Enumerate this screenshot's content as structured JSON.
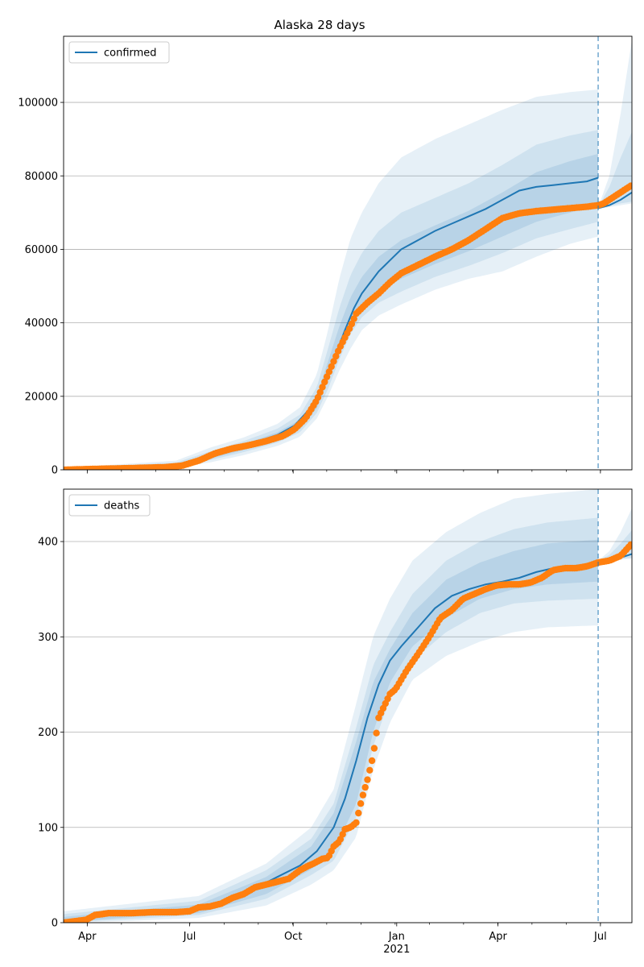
{
  "title": "Alaska 28 days",
  "chart_data": [
    {
      "type": "line",
      "xlabel": "",
      "ylabel": "",
      "x_range_days": [
        0,
        505
      ],
      "ylim": [
        0,
        118000
      ],
      "yticks": [
        0,
        20000,
        40000,
        60000,
        80000,
        100000
      ],
      "grid": "horizontal",
      "legend_position": "top-left",
      "legend": [
        "confirmed"
      ],
      "forecast_start_day": 475,
      "x_ticks": [
        {
          "day": 21,
          "label": "Apr"
        },
        {
          "day": 112,
          "label": "Jul"
        },
        {
          "day": 204,
          "label": "Oct"
        },
        {
          "day": 296,
          "label": "Jan"
        },
        {
          "day": 386,
          "label": "Apr"
        },
        {
          "day": 477,
          "label": "Jul"
        }
      ],
      "year_label": {
        "day": 296,
        "label": "2021"
      },
      "series": [
        {
          "name": "confirmed",
          "role": "model",
          "x": [
            0,
            30,
            60,
            90,
            110,
            130,
            150,
            170,
            190,
            205,
            220,
            235,
            250,
            258,
            265,
            270,
            275,
            280,
            285,
            290,
            300,
            315,
            330,
            345,
            360,
            375,
            390,
            405,
            420,
            435,
            450,
            465,
            475
          ],
          "values": [
            0,
            200,
            400,
            600,
            1200,
            3500,
            5800,
            7500,
            9500,
            12000,
            17000,
            26000,
            38000,
            44000,
            48000,
            50000,
            52000,
            54000,
            55500,
            57000,
            60000,
            62500,
            65000,
            67000,
            69000,
            71000,
            73500,
            76000,
            77000,
            77500,
            78000,
            78500,
            79500
          ]
        },
        {
          "name": "forecast",
          "role": "model",
          "x": [
            475,
            485,
            495,
            505
          ],
          "values": [
            71200,
            72000,
            73500,
            75500
          ]
        },
        {
          "name": "observed",
          "role": "observed",
          "x": [
            0,
            30,
            60,
            90,
            105,
            120,
            135,
            150,
            165,
            180,
            195,
            205,
            215,
            225,
            235,
            245,
            255,
            260,
            270,
            280,
            290,
            300,
            310,
            320,
            330,
            345,
            360,
            375,
            390,
            405,
            420,
            435,
            450,
            465,
            475,
            480,
            490,
            500,
            505
          ],
          "values": [
            0,
            250,
            450,
            700,
            1100,
            2500,
            4500,
            5800,
            6700,
            7800,
            9200,
            11000,
            14000,
            19000,
            26000,
            33000,
            39000,
            42500,
            45500,
            48000,
            51000,
            53500,
            55000,
            56500,
            58000,
            60000,
            62500,
            65500,
            68500,
            69800,
            70400,
            70800,
            71200,
            71600,
            72000,
            72500,
            74500,
            76500,
            77500
          ]
        }
      ],
      "bands": [
        {
          "level": "outer",
          "x": [
            0,
            100,
            130,
            160,
            190,
            210,
            225,
            235,
            245,
            255,
            265,
            280,
            300,
            330,
            360,
            390,
            420,
            450,
            475
          ],
          "lower": [
            0,
            600,
            2000,
            4000,
            6500,
            9000,
            14000,
            20000,
            27000,
            33000,
            38000,
            42000,
            45000,
            49000,
            52000,
            54000,
            58000,
            61500,
            63500
          ],
          "upper": [
            500,
            2500,
            6000,
            8800,
            12500,
            17000,
            26000,
            38000,
            52000,
            63000,
            70000,
            78000,
            85000,
            90000,
            94000,
            98000,
            101500,
            102800,
            103500
          ]
        },
        {
          "level": "middle",
          "x": [
            0,
            100,
            130,
            160,
            190,
            210,
            225,
            235,
            245,
            255,
            265,
            280,
            300,
            330,
            360,
            390,
            420,
            450,
            475
          ],
          "lower": [
            0,
            800,
            2600,
            4800,
            7400,
            10200,
            15500,
            22000,
            30000,
            37000,
            41500,
            45500,
            48500,
            52500,
            55500,
            59000,
            63000,
            65500,
            67500
          ],
          "upper": [
            350,
            2000,
            5000,
            7800,
            11200,
            15000,
            22500,
            33000,
            44000,
            53000,
            59000,
            65000,
            70000,
            74000,
            78000,
            83000,
            88500,
            91000,
            92500
          ]
        },
        {
          "level": "inner",
          "x": [
            0,
            100,
            130,
            160,
            190,
            210,
            225,
            235,
            245,
            255,
            265,
            280,
            300,
            330,
            360,
            390,
            420,
            450,
            475
          ],
          "lower": [
            0,
            1000,
            3000,
            5400,
            8200,
            11000,
            16800,
            24500,
            33000,
            40000,
            44500,
            48500,
            52000,
            56000,
            59500,
            63500,
            67500,
            70000,
            72000
          ],
          "upper": [
            250,
            1600,
            4300,
            7000,
            10200,
            13600,
            20200,
            29500,
            39000,
            47000,
            52500,
            58000,
            62500,
            66500,
            70500,
            75500,
            81000,
            84000,
            86000
          ]
        },
        {
          "level": "forecast-outer",
          "x": [
            475,
            485,
            495,
            505
          ],
          "lower": [
            71000,
            71500,
            72000,
            72500
          ],
          "upper": [
            71500,
            80000,
            97000,
            117000
          ]
        },
        {
          "level": "forecast-middle",
          "x": [
            475,
            485,
            495,
            505
          ],
          "lower": [
            71000,
            71800,
            72500,
            73000
          ],
          "upper": [
            71500,
            77000,
            85000,
            92000
          ]
        }
      ]
    },
    {
      "type": "line",
      "xlabel": "",
      "ylabel": "",
      "x_range_days": [
        0,
        505
      ],
      "ylim": [
        0,
        455
      ],
      "yticks": [
        0,
        100,
        200,
        300,
        400
      ],
      "grid": "horizontal",
      "legend_position": "top-left",
      "legend": [
        "deaths"
      ],
      "forecast_start_day": 475,
      "x_ticks": [
        {
          "day": 21,
          "label": "Apr"
        },
        {
          "day": 112,
          "label": "Jul"
        },
        {
          "day": 204,
          "label": "Oct"
        },
        {
          "day": 296,
          "label": "Jan"
        },
        {
          "day": 386,
          "label": "Apr"
        },
        {
          "day": 477,
          "label": "Jul"
        }
      ],
      "year_label": {
        "day": 296,
        "label": "2021"
      },
      "series": [
        {
          "name": "deaths",
          "role": "model",
          "x": [
            0,
            30,
            60,
            90,
            120,
            150,
            170,
            190,
            210,
            225,
            240,
            250,
            260,
            270,
            280,
            290,
            300,
            315,
            330,
            345,
            360,
            375,
            390,
            405,
            420,
            435,
            450,
            465,
            475
          ],
          "values": [
            0,
            8,
            11,
            12,
            14,
            25,
            36,
            48,
            60,
            75,
            100,
            130,
            170,
            215,
            250,
            275,
            290,
            310,
            330,
            343,
            350,
            355,
            358,
            362,
            368,
            372,
            374,
            376,
            379
          ]
        },
        {
          "name": "forecast",
          "role": "model",
          "x": [
            475,
            485,
            495,
            505
          ],
          "values": [
            379,
            380,
            383,
            387
          ]
        },
        {
          "name": "observed",
          "role": "observed",
          "x": [
            0,
            20,
            28,
            40,
            60,
            80,
            100,
            112,
            120,
            130,
            140,
            150,
            160,
            170,
            180,
            190,
            200,
            210,
            218,
            222,
            230,
            235,
            240,
            245,
            250,
            255,
            260,
            265,
            270,
            275,
            280,
            290,
            295,
            305,
            315,
            325,
            335,
            345,
            355,
            365,
            375,
            385,
            395,
            405,
            415,
            425,
            435,
            445,
            455,
            465,
            475,
            485,
            495,
            505
          ],
          "values": [
            0,
            3,
            8,
            10,
            10,
            11,
            11,
            12,
            16,
            17,
            20,
            26,
            30,
            37,
            40,
            43,
            46,
            55,
            60,
            62,
            67,
            68,
            80,
            85,
            98,
            100,
            105,
            130,
            150,
            175,
            215,
            240,
            245,
            265,
            282,
            300,
            320,
            328,
            340,
            345,
            350,
            354,
            355,
            355,
            357,
            362,
            370,
            372,
            372,
            374,
            378,
            380,
            385,
            398
          ]
        }
      ],
      "bands": [
        {
          "level": "outer",
          "x": [
            0,
            60,
            120,
            180,
            220,
            240,
            260,
            275,
            290,
            310,
            340,
            370,
            400,
            430,
            475
          ],
          "lower": [
            0,
            2,
            5,
            18,
            40,
            55,
            90,
            160,
            210,
            255,
            280,
            295,
            305,
            310,
            312
          ],
          "upper": [
            12,
            20,
            28,
            62,
            100,
            140,
            230,
            300,
            340,
            380,
            410,
            430,
            445,
            450,
            455
          ]
        },
        {
          "level": "middle",
          "x": [
            0,
            60,
            120,
            180,
            220,
            240,
            260,
            275,
            290,
            310,
            340,
            370,
            400,
            430,
            475
          ],
          "lower": [
            0,
            4,
            8,
            25,
            50,
            65,
            110,
            185,
            235,
            275,
            305,
            325,
            335,
            338,
            340
          ],
          "upper": [
            9,
            16,
            23,
            55,
            88,
            125,
            205,
            270,
            305,
            345,
            380,
            400,
            413,
            420,
            425
          ]
        },
        {
          "level": "inner",
          "x": [
            0,
            60,
            120,
            180,
            220,
            240,
            260,
            275,
            290,
            310,
            340,
            370,
            400,
            430,
            475
          ],
          "lower": [
            0,
            6,
            10,
            30,
            56,
            75,
            125,
            200,
            252,
            290,
            320,
            340,
            350,
            355,
            358
          ],
          "upper": [
            6,
            13,
            19,
            48,
            80,
            115,
            190,
            252,
            287,
            325,
            360,
            378,
            390,
            398,
            402
          ]
        },
        {
          "level": "forecast-outer",
          "x": [
            475,
            485,
            495,
            505
          ],
          "lower": [
            378,
            379,
            381,
            382
          ],
          "upper": [
            380,
            390,
            410,
            435
          ]
        },
        {
          "level": "forecast-middle",
          "x": [
            475,
            485,
            495,
            505
          ],
          "lower": [
            378,
            379,
            382,
            383
          ],
          "upper": [
            380,
            386,
            398,
            412
          ]
        }
      ]
    }
  ]
}
